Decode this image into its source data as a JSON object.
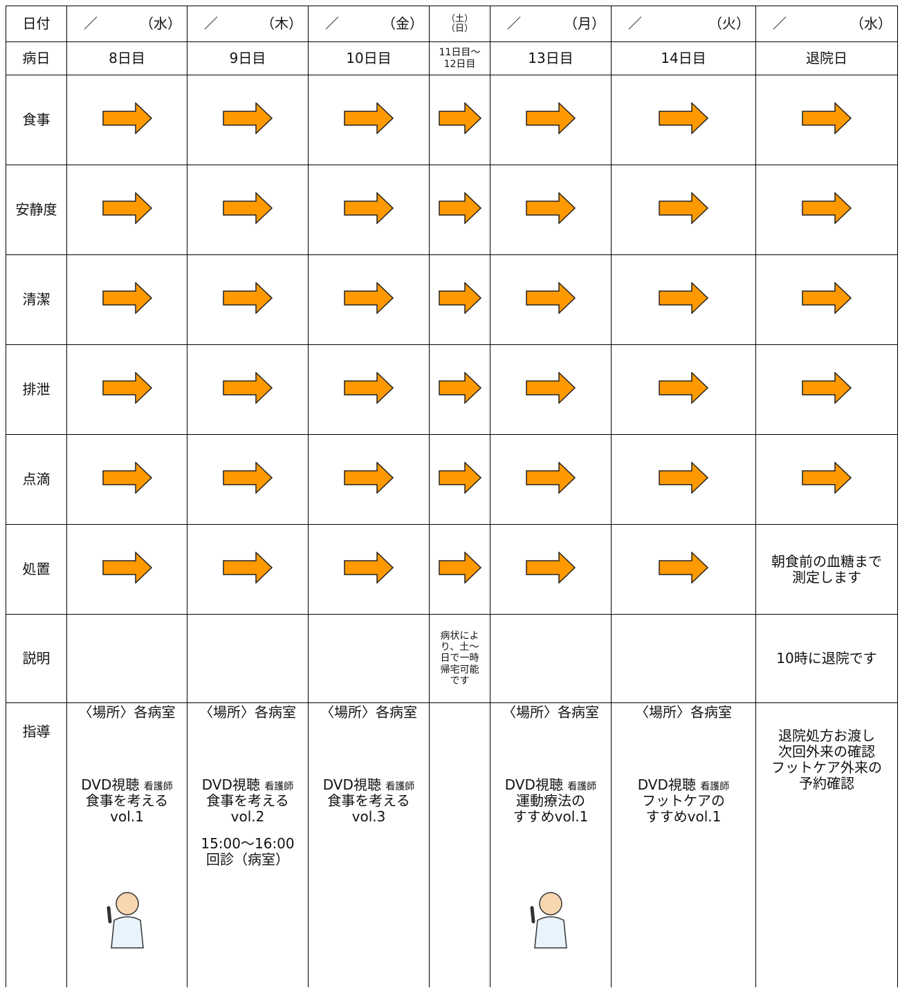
{
  "header": {
    "label": "日付",
    "days": [
      {
        "slash": "／",
        "day": "（水）"
      },
      {
        "slash": "／",
        "day": "（木）"
      },
      {
        "slash": "／",
        "day": "（金）"
      },
      {
        "weekend": [
          "（土）",
          "（日）"
        ]
      },
      {
        "slash": "／",
        "day": "（月）"
      },
      {
        "slash": "／",
        "day": "（火）"
      },
      {
        "slash": "／",
        "day": "（水）"
      }
    ]
  },
  "day_row": {
    "label": "病日",
    "cells": [
      "8日目",
      "9日目",
      "10日目",
      "11日目～\n12日目",
      "13日目",
      "14日目",
      "退院日"
    ]
  },
  "rows": [
    {
      "label": "食事"
    },
    {
      "label": "安静度"
    },
    {
      "label": "清潔"
    },
    {
      "label": "排泄"
    },
    {
      "label": "点滴"
    },
    {
      "label": "処置",
      "text": "朝食前の血糖まで\n測定します"
    },
    {
      "label": "説明",
      "weekend_text": "病状によ\nり、土～\n日で一時\n帰宅可能\nです",
      "text": "10時に退院です"
    }
  ],
  "guidance": {
    "label": "指導",
    "cells": [
      {
        "place": "〈場所〉各病室",
        "dvd": "DVD視聴",
        "by": "看護師",
        "topic": "食事を考える\nvol.1"
      },
      {
        "place": "〈場所〉各病室",
        "dvd": "DVD視聴",
        "by": "看護師",
        "topic": "食事を考える\nvol.2",
        "extra": "15:00～16:00\n回診（病室）"
      },
      {
        "place": "〈場所〉各病室",
        "dvd": "DVD視聴",
        "by": "看護師",
        "topic": "食事を考える\nvol.3"
      },
      null,
      {
        "place": "〈場所〉各病室",
        "dvd": "DVD視聴",
        "by": "看護師",
        "topic": "運動療法の\nすすめvol.1"
      },
      {
        "place": "〈場所〉各病室",
        "dvd": "DVD視聴",
        "by": "看護師",
        "topic": "フットケアの\nすすめvol.1"
      },
      {
        "text": "退院処方お渡し\n次回外来の確認\nフットケア外来の\n予約確認"
      }
    ]
  }
}
